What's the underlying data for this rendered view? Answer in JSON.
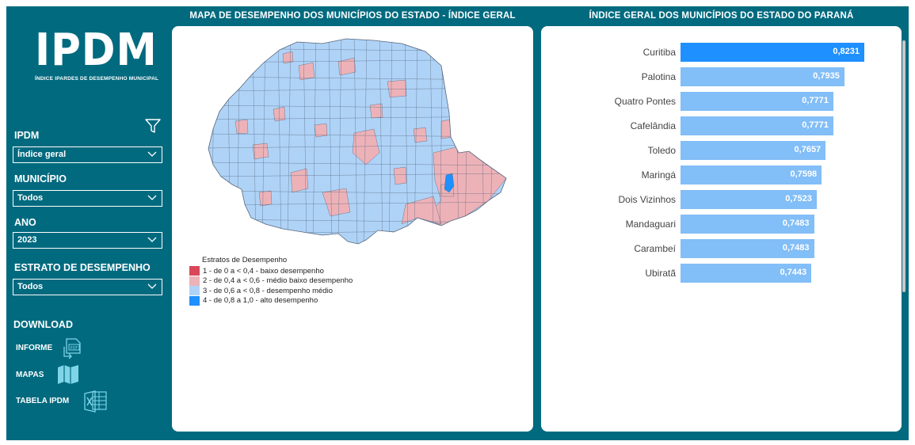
{
  "logo": {
    "title": "IPDM",
    "subtitle": "ÍNDICE IPARDES DE DESEMPENHO MUNICIPAL"
  },
  "filters": {
    "ipdm": {
      "label": "IPDM",
      "value": "Índice geral"
    },
    "municipio": {
      "label": "MUNICÍPIO",
      "value": "Todos"
    },
    "ano": {
      "label": "ANO",
      "value": "2023"
    },
    "estrato": {
      "label": "ESTRATO DE DESEMPENHO",
      "value": "Todos"
    }
  },
  "download": {
    "title": "DOWNLOAD",
    "items": [
      {
        "label": "INFORME",
        "icon": "pdf-icon"
      },
      {
        "label": "MAPAS",
        "icon": "map-icon"
      },
      {
        "label": "TABELA IPDM",
        "icon": "excel-icon"
      }
    ]
  },
  "map_panel": {
    "title": "MAPA DE DESEMPENHO DOS MUNICÍPIOS DO ESTADO - ÍNDICE GERAL",
    "legend_title": "Estratos de Desempenho",
    "legend": [
      {
        "label": "1 - de 0 a < 0,4    - baixo desempenho",
        "color": "#D9475A"
      },
      {
        "label": "2 - de 0,4 a < 0,6 - médio baixo desempenho",
        "color": "#EDB2B8"
      },
      {
        "label": "3 - de 0,6 a < 0,8 - desempenho médio",
        "color": "#AFD3F7"
      },
      {
        "label": "4 - de 0,8 a 1,0    - alto desempenho",
        "color": "#1E90FF"
      }
    ]
  },
  "ranking_panel": {
    "title": "ÍNDICE GERAL DOS MUNICÍPIOS DO ESTADO DO PARANÁ",
    "top_color": "#1E90FF",
    "bar_color": "#82BEF7"
  },
  "chart_data": {
    "type": "bar",
    "orientation": "horizontal",
    "categories": [
      "Curitiba",
      "Palotina",
      "Quatro Pontes",
      "Cafelândia",
      "Toledo",
      "Maringá",
      "Dois Vizinhos",
      "Mandaguari",
      "Carambeí",
      "Ubiratã"
    ],
    "values": [
      0.8231,
      0.7935,
      0.7771,
      0.7771,
      0.7657,
      0.7598,
      0.7523,
      0.7483,
      0.7483,
      0.7443
    ],
    "value_labels": [
      "0,8231",
      "0,7935",
      "0,7771",
      "0,7771",
      "0,7657",
      "0,7598",
      "0,7523",
      "0,7483",
      "0,7483",
      "0,7443"
    ],
    "title": "ÍNDICE GERAL DOS MUNICÍPIOS DO ESTADO DO PARANÁ"
  }
}
